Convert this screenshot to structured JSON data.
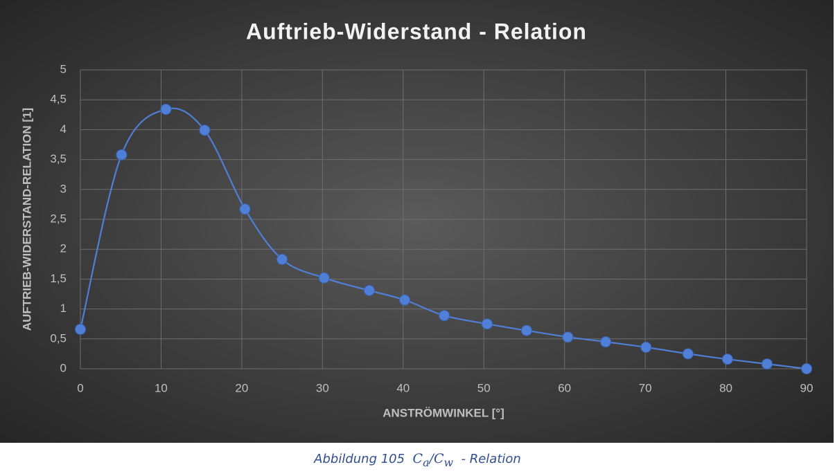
{
  "chart_data": {
    "type": "line",
    "title": "Auftrieb-Widerstand - Relation",
    "x_label": "ANSTRÖMWINKEL [°]",
    "y_label": "AUFTRIEB-WIDERSTAND-RELATION [1]",
    "series": [
      {
        "color": "#4f7fd6",
        "x": [
          0,
          5.1,
          10.6,
          15.4,
          20.4,
          25,
          30.2,
          35.8,
          40.2,
          45.1,
          50.4,
          55.3,
          60.4,
          65.1,
          70.1,
          75.3,
          80.2,
          85.1,
          90
        ],
        "values": [
          0.66,
          3.58,
          4.34,
          3.99,
          2.67,
          1.83,
          1.52,
          1.31,
          1.15,
          0.89,
          0.75,
          0.64,
          0.53,
          0.45,
          0.36,
          0.25,
          0.16,
          0.08,
          0
        ]
      }
    ],
    "xlim": [
      0,
      90
    ],
    "xticks": [
      0,
      10,
      20,
      30,
      40,
      50,
      60,
      70,
      80,
      90
    ],
    "ylim": [
      0,
      5
    ],
    "yticks": [
      0,
      {
        "value": 0.5,
        "label": "0,5"
      },
      1,
      {
        "value": 1.5,
        "label": "1,5"
      },
      2,
      {
        "value": 2.5,
        "label": "2,5"
      },
      3,
      {
        "value": 3.5,
        "label": "3,5"
      },
      4,
      {
        "value": 4.5,
        "label": "4,5"
      },
      5
    ],
    "grid": true
  },
  "caption": {
    "text": "Abbildung 105",
    "formula": [
      "C",
      "a",
      "/",
      "C",
      "w"
    ],
    "suffix": "- Relation"
  }
}
